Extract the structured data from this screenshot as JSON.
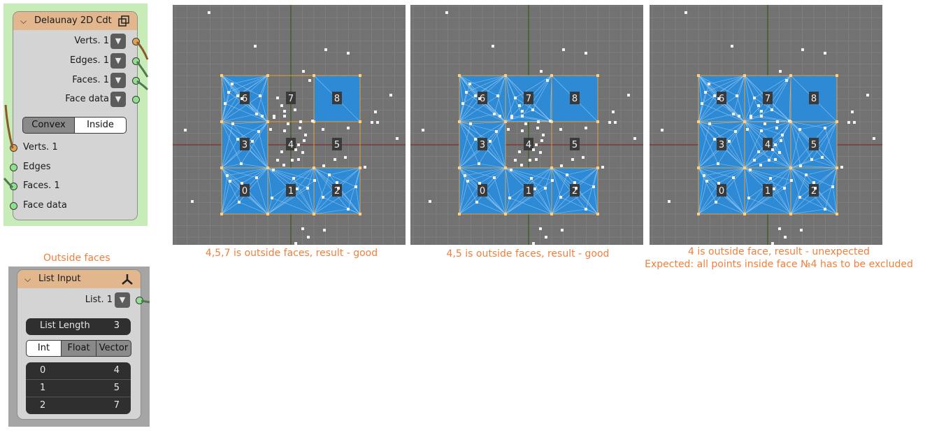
{
  "delaunay_node": {
    "title": "Delaunay 2D Cdt",
    "outputs": [
      "Verts. 1",
      "Edges. 1",
      "Faces. 1",
      "Face data"
    ],
    "mode_options": [
      "Convex",
      "Inside"
    ],
    "selected_mode": "Convex",
    "inputs": [
      "Verts. 1",
      "Edges",
      "Faces. 1",
      "Face data"
    ]
  },
  "outside_label": "Outside faces",
  "list_node": {
    "title": "List Input",
    "output": "List. 1",
    "length_label": "List Length",
    "length_value": "3",
    "type_options": [
      "Int",
      "Float",
      "Vector"
    ],
    "selected_type": "Int",
    "items": [
      {
        "index": "0",
        "value": "4"
      },
      {
        "index": "1",
        "value": "5"
      },
      {
        "index": "2",
        "value": "7"
      }
    ]
  },
  "viewports": [
    {
      "caption": "4,5,7 is outside faces, result - good",
      "filled_faces": [
        "0",
        "1",
        "2",
        "3",
        "6",
        "8"
      ]
    },
    {
      "caption": "4,5 is outside faces, result - good",
      "filled_faces": [
        "0",
        "1",
        "2",
        "3",
        "6",
        "7",
        "8"
      ]
    },
    {
      "caption": "4 is outside face, result - unexpected",
      "caption2": "Expected: all points inside face №4 has to be excluded",
      "filled_faces": [
        "0",
        "1",
        "2",
        "3",
        "4",
        "5",
        "6",
        "7",
        "8"
      ]
    }
  ],
  "face_labels": [
    "0",
    "1",
    "2",
    "3",
    "4",
    "5",
    "6",
    "7",
    "8"
  ],
  "colors": {
    "face_fill": "#2f8ad6",
    "grid_bg": "#727272",
    "caption": "#ef7f3c",
    "node_header": "#e3b78e",
    "socket_green": "#8fe08f",
    "socket_orange": "#e2a154"
  }
}
